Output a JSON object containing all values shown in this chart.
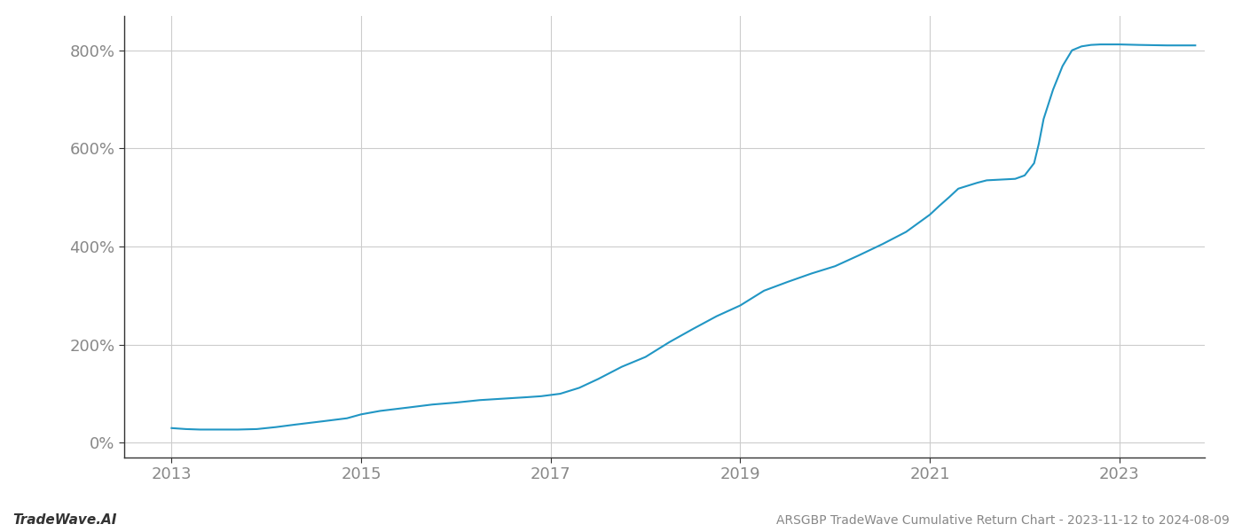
{
  "title": "ARSGBP TradeWave Cumulative Return Chart - 2023-11-12 to 2024-08-09",
  "footer_left": "TradeWave.AI",
  "line_color": "#2196c4",
  "line_width": 1.5,
  "background_color": "#ffffff",
  "grid_color": "#cccccc",
  "text_color": "#888888",
  "footer_color": "#333333",
  "xlim": [
    2012.5,
    2023.9
  ],
  "ylim": [
    -30,
    870
  ],
  "xtick_labels": [
    "2013",
    "2015",
    "2017",
    "2019",
    "2021",
    "2023"
  ],
  "xtick_values": [
    2013,
    2015,
    2017,
    2019,
    2021,
    2023
  ],
  "ytick_labels": [
    "0%",
    "200%",
    "400%",
    "600%",
    "800%"
  ],
  "ytick_values": [
    0,
    200,
    400,
    600,
    800
  ],
  "data_x": [
    2013.0,
    2013.15,
    2013.3,
    2013.5,
    2013.7,
    2013.9,
    2014.1,
    2014.3,
    2014.6,
    2014.85,
    2015.0,
    2015.2,
    2015.5,
    2015.75,
    2016.0,
    2016.25,
    2016.5,
    2016.75,
    2016.9,
    2017.1,
    2017.3,
    2017.5,
    2017.75,
    2018.0,
    2018.25,
    2018.5,
    2018.75,
    2019.0,
    2019.25,
    2019.5,
    2019.75,
    2020.0,
    2020.25,
    2020.5,
    2020.75,
    2021.0,
    2021.1,
    2021.2,
    2021.3,
    2021.5,
    2021.6,
    2021.7,
    2021.8,
    2021.9,
    2022.0,
    2022.1,
    2022.15,
    2022.2,
    2022.3,
    2022.4,
    2022.5,
    2022.6,
    2022.7,
    2022.8,
    2022.9,
    2023.0,
    2023.2,
    2023.5,
    2023.8
  ],
  "data_y": [
    30,
    28,
    27,
    27,
    27,
    28,
    32,
    37,
    44,
    50,
    58,
    65,
    72,
    78,
    82,
    87,
    90,
    93,
    95,
    100,
    112,
    130,
    155,
    175,
    205,
    232,
    258,
    280,
    310,
    328,
    345,
    360,
    382,
    405,
    430,
    465,
    483,
    500,
    518,
    530,
    535,
    536,
    537,
    538,
    545,
    570,
    610,
    660,
    720,
    768,
    800,
    808,
    811,
    812,
    812,
    812,
    811,
    810,
    810
  ]
}
